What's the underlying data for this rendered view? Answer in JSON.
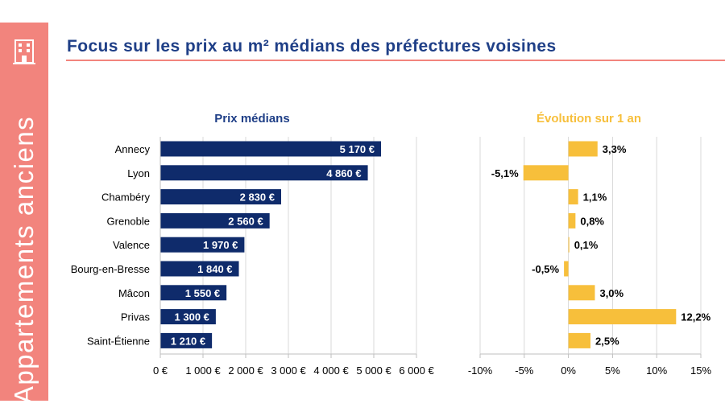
{
  "sidebar": {
    "label": "Appartements anciens",
    "icon": "building-icon",
    "color": "#f2847d"
  },
  "header": {
    "title": "Focus sur les prix au m² médians des préfectures voisines"
  },
  "colors": {
    "navy": "#0f2b6b",
    "gold": "#f7bf3b",
    "title_blue": "#1f3f87",
    "accent": "#f2847d"
  },
  "chart_data": [
    {
      "type": "bar",
      "orientation": "horizontal",
      "title": "Prix médians",
      "categories": [
        "Annecy",
        "Lyon",
        "Chambéry",
        "Grenoble",
        "Valence",
        "Bourg-en-Bresse",
        "Mâcon",
        "Privas",
        "Saint-Étienne"
      ],
      "values": [
        5170,
        4860,
        2830,
        2560,
        1970,
        1840,
        1550,
        1300,
        1210
      ],
      "value_labels": [
        "5 170 €",
        "4 860 €",
        "2 830 €",
        "2 560 €",
        "1 970 €",
        "1 840 €",
        "1 550 €",
        "1 300 €",
        "1 210 €"
      ],
      "xlim": [
        0,
        6000
      ],
      "xticks": [
        0,
        1000,
        2000,
        3000,
        4000,
        5000,
        6000
      ],
      "xtick_labels": [
        "0 €",
        "1 000 €",
        "2 000 €",
        "3 000 €",
        "4 000 €",
        "5 000 €",
        "6 000 €"
      ],
      "xlabel": "",
      "ylabel": "",
      "grid": true,
      "color": "#0f2b6b"
    },
    {
      "type": "bar",
      "orientation": "horizontal",
      "title": "Évolution sur 1 an",
      "categories": [
        "Annecy",
        "Lyon",
        "Chambéry",
        "Grenoble",
        "Valence",
        "Bourg-en-Bresse",
        "Mâcon",
        "Privas",
        "Saint-Étienne"
      ],
      "values": [
        3.3,
        -5.1,
        1.1,
        0.8,
        0.1,
        -0.5,
        3.0,
        12.2,
        2.5
      ],
      "value_labels": [
        "3,3%",
        "-5,1%",
        "1,1%",
        "0,8%",
        "0,1%",
        "-0,5%",
        "3,0%",
        "12,2%",
        "2,5%"
      ],
      "xlim": [
        -10,
        15
      ],
      "xticks": [
        -10,
        -5,
        0,
        5,
        10,
        15
      ],
      "xtick_labels": [
        "-10%",
        "-5%",
        "0%",
        "5%",
        "10%",
        "15%"
      ],
      "xlabel": "",
      "ylabel": "",
      "grid": true,
      "color": "#f7bf3b"
    }
  ]
}
